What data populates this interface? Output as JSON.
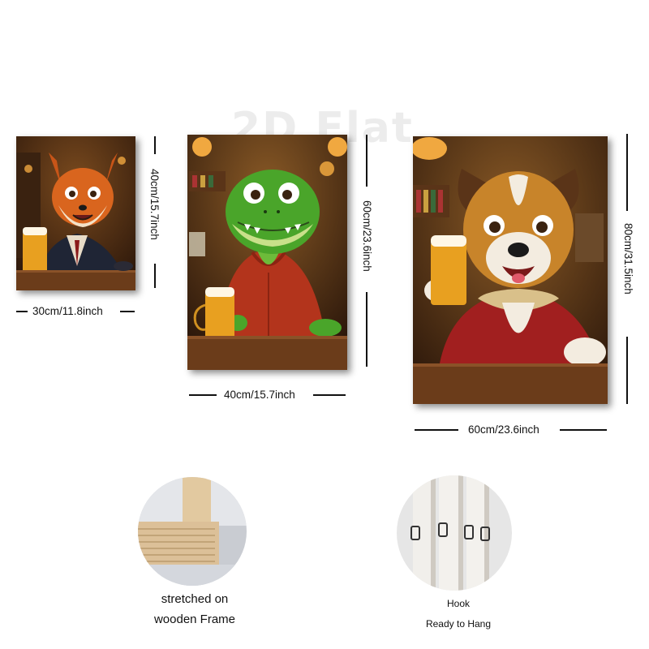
{
  "watermark": "2D Flat",
  "products": [
    {
      "subject": "fox",
      "width_label": "30cm/11.8inch",
      "height_label": "40cm/15.7inch"
    },
    {
      "subject": "crocodile",
      "width_label": "40cm/15.7inch",
      "height_label": "60cm/23.6inch"
    },
    {
      "subject": "dog",
      "width_label": "60cm/23.6inch",
      "height_label": "80cm/31.5inch"
    }
  ],
  "details": {
    "frame": {
      "line1": "stretched on",
      "line2": "wooden Frame"
    },
    "hook": {
      "line1": "Hook",
      "line2": "Ready to Hang"
    }
  },
  "colors": {
    "pub_bg": "#4a2a12",
    "warm_light": "#f0a840",
    "table": "#6b3c1a",
    "beer": "#e8a020",
    "fox": "#d9651e",
    "croc": "#4aa52a",
    "hoodie": "#b3341c",
    "dog_tan": "#c8842a",
    "jacket": "#a11f1f"
  }
}
